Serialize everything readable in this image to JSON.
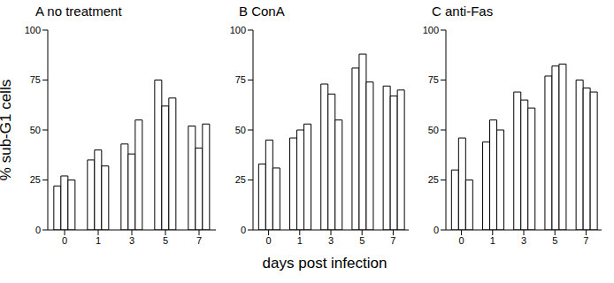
{
  "chart_data": [
    {
      "type": "bar",
      "title": "A no treatment",
      "y_label": "% sub-G1 cells",
      "categories": [
        "0",
        "1",
        "3",
        "5",
        "7"
      ],
      "series": [
        {
          "color": "#ffffff",
          "values": [
            22,
            35,
            43,
            75,
            52
          ]
        },
        {
          "color": "#ffffff",
          "values": [
            27,
            40,
            38,
            62,
            41
          ]
        },
        {
          "color": "#ffffff",
          "values": [
            25,
            32,
            55,
            66,
            53
          ]
        }
      ],
      "ylim": [
        0,
        100
      ],
      "yticks": [
        0,
        25,
        50,
        75,
        100
      ],
      "grid": false
    },
    {
      "type": "bar",
      "title": "B ConA",
      "x_label": "days post infection",
      "categories": [
        "0",
        "1",
        "3",
        "5",
        "7"
      ],
      "series": [
        {
          "color": "#ffffff",
          "values": [
            33,
            46,
            73,
            81,
            72
          ]
        },
        {
          "color": "#ffffff",
          "values": [
            45,
            50,
            68,
            88,
            67
          ]
        },
        {
          "color": "#ffffff",
          "values": [
            31,
            53,
            55,
            74,
            70
          ]
        }
      ],
      "ylim": [
        0,
        100
      ],
      "yticks": [
        0,
        25,
        50,
        75,
        100
      ],
      "grid": false
    },
    {
      "type": "bar",
      "title": "C anti-Fas",
      "categories": [
        "0",
        "1",
        "3",
        "5",
        "7"
      ],
      "series": [
        {
          "color": "#ffffff",
          "values": [
            30,
            44,
            69,
            77,
            75
          ]
        },
        {
          "color": "#ffffff",
          "values": [
            46,
            55,
            65,
            82,
            71
          ]
        },
        {
          "color": "#ffffff",
          "values": [
            25,
            50,
            61,
            83,
            69
          ]
        }
      ],
      "ylim": [
        0,
        100
      ],
      "yticks": [
        0,
        25,
        50,
        75,
        100
      ],
      "grid": false
    }
  ]
}
